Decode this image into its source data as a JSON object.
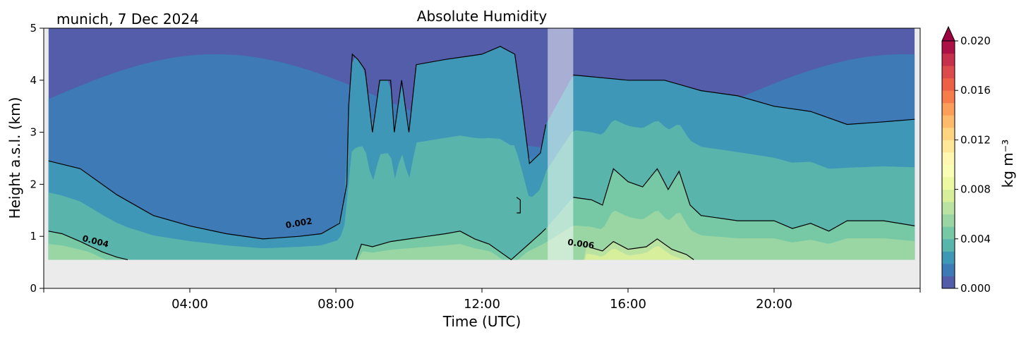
{
  "chart_data": {
    "type": "heatmap",
    "title": "Absolute Humidity",
    "subtitle": "munich, 7 Dec 2024",
    "xlabel": "Time (UTC)",
    "ylabel": "Height a.s.l. (km)",
    "xlim": [
      0,
      24
    ],
    "ylim": [
      0,
      5
    ],
    "x_ticks": [
      4,
      8,
      12,
      16,
      20
    ],
    "x_tick_labels": [
      "04:00",
      "08:00",
      "12:00",
      "16:00",
      "20:00"
    ],
    "y_ticks": [
      0,
      1,
      2,
      3,
      4,
      5
    ],
    "y_tick_labels": [
      "0",
      "1",
      "2",
      "3",
      "4",
      "5"
    ],
    "colorbar": {
      "label": "kg m⁻³",
      "min": 0.0,
      "max": 0.02,
      "ticks": [
        0.0,
        0.004,
        0.008,
        0.012,
        0.016,
        0.02
      ],
      "tick_labels": [
        "0.000",
        "0.004",
        "0.008",
        "0.012",
        "0.016",
        "0.020"
      ],
      "extend": "max",
      "colormap": "Spectral_r"
    },
    "data_bottom_km": 0.55,
    "data_time_range": [
      0.13,
      23.85
    ],
    "masked_interval": [
      13.8,
      14.5
    ],
    "contours": [
      {
        "level": 0.002,
        "label": "0.002",
        "label_at": [
          7.0,
          1.2
        ],
        "path": [
          [
            0.13,
            2.45
          ],
          [
            1.0,
            2.3
          ],
          [
            2.0,
            1.8
          ],
          [
            3.0,
            1.4
          ],
          [
            4.0,
            1.2
          ],
          [
            5.0,
            1.05
          ],
          [
            6.0,
            0.95
          ],
          [
            7.0,
            1.0
          ],
          [
            7.6,
            1.05
          ],
          [
            8.1,
            1.25
          ],
          [
            8.3,
            2.0
          ],
          [
            8.35,
            3.5
          ],
          [
            8.45,
            4.5
          ],
          [
            8.6,
            4.4
          ],
          [
            8.8,
            4.2
          ],
          [
            9.0,
            3.0
          ],
          [
            9.2,
            4.0
          ],
          [
            9.5,
            4.0
          ],
          [
            9.6,
            3.0
          ],
          [
            9.8,
            4.0
          ],
          [
            10.0,
            3.0
          ],
          [
            10.2,
            4.3
          ],
          [
            11.0,
            4.4
          ],
          [
            12.0,
            4.5
          ],
          [
            12.5,
            4.65
          ],
          [
            12.9,
            4.5
          ],
          [
            13.1,
            3.5
          ],
          [
            13.3,
            2.4
          ],
          [
            13.6,
            2.6
          ],
          [
            13.75,
            3.15
          ]
        ]
      },
      {
        "level": 0.002,
        "path": [
          [
            14.5,
            4.1
          ],
          [
            16.0,
            4.0
          ],
          [
            17.0,
            4.0
          ],
          [
            18.0,
            3.8
          ],
          [
            19.0,
            3.7
          ],
          [
            20.0,
            3.5
          ],
          [
            21.0,
            3.4
          ],
          [
            22.0,
            3.15
          ],
          [
            23.0,
            3.2
          ],
          [
            23.85,
            3.25
          ]
        ]
      },
      {
        "level": 0.004,
        "label": "0.004",
        "label_at": [
          1.4,
          0.85
        ],
        "path": [
          [
            0.13,
            1.1
          ],
          [
            0.5,
            1.05
          ],
          [
            1.0,
            0.9
          ],
          [
            1.6,
            0.7
          ],
          [
            2.0,
            0.6
          ],
          [
            2.3,
            0.55
          ]
        ]
      },
      {
        "level": 0.004,
        "path": [
          [
            8.55,
            0.55
          ],
          [
            8.7,
            0.85
          ],
          [
            9.0,
            0.8
          ],
          [
            9.5,
            0.9
          ],
          [
            10.0,
            0.95
          ],
          [
            10.5,
            1.0
          ],
          [
            11.0,
            1.05
          ],
          [
            11.4,
            1.1
          ],
          [
            11.8,
            0.95
          ],
          [
            12.2,
            0.85
          ],
          [
            12.8,
            0.55
          ],
          [
            13.2,
            0.8
          ],
          [
            13.6,
            1.05
          ],
          [
            13.75,
            1.15
          ]
        ]
      },
      {
        "level": 0.004,
        "path": [
          [
            14.5,
            1.75
          ],
          [
            15.0,
            1.7
          ],
          [
            15.3,
            1.6
          ],
          [
            15.6,
            2.3
          ],
          [
            16.0,
            2.05
          ],
          [
            16.4,
            1.95
          ],
          [
            16.8,
            2.3
          ],
          [
            17.1,
            1.9
          ],
          [
            17.4,
            2.25
          ],
          [
            17.7,
            1.6
          ],
          [
            18.0,
            1.4
          ],
          [
            19.0,
            1.3
          ],
          [
            20.0,
            1.3
          ],
          [
            20.5,
            1.15
          ],
          [
            21.0,
            1.25
          ],
          [
            21.5,
            1.1
          ],
          [
            22.0,
            1.3
          ],
          [
            23.0,
            1.3
          ],
          [
            23.85,
            1.2
          ]
        ]
      },
      {
        "level": 0.004,
        "path": [
          [
            12.95,
            1.75
          ],
          [
            13.05,
            1.7
          ],
          [
            13.05,
            1.45
          ],
          [
            12.95,
            1.45
          ]
        ]
      },
      {
        "level": 0.006,
        "label": "0.006",
        "label_at": [
          14.7,
          0.8
        ],
        "path": [
          [
            15.0,
            0.78
          ],
          [
            15.3,
            0.72
          ],
          [
            15.6,
            0.9
          ],
          [
            16.0,
            0.75
          ],
          [
            16.5,
            0.8
          ],
          [
            16.8,
            0.95
          ],
          [
            17.2,
            0.75
          ],
          [
            17.6,
            0.65
          ],
          [
            17.8,
            0.55
          ]
        ]
      }
    ]
  }
}
